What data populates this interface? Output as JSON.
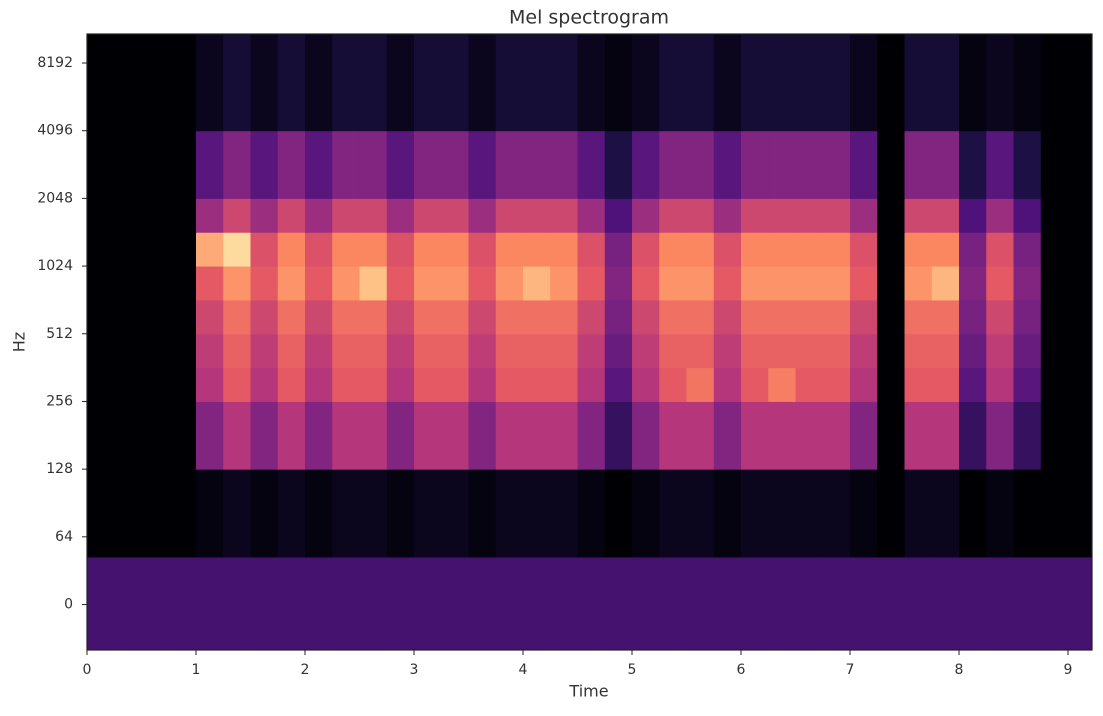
{
  "chart_data": {
    "type": "heatmap",
    "title": "Mel spectrogram",
    "xlabel": "Time",
    "ylabel": "Hz",
    "colormap": "magma",
    "zlim": [
      -80,
      0
    ],
    "yscale": "symlog",
    "linthresh": 64,
    "logbase": 2,
    "xlim": [
      0,
      9.22
    ],
    "xticks": [
      0,
      1,
      2,
      3,
      4,
      5,
      6,
      7,
      8,
      9
    ],
    "ylim": [
      -43,
      11025
    ],
    "yticks": [
      0,
      64,
      128,
      256,
      512,
      1024,
      2048,
      4096,
      8192
    ],
    "xbins": [
      0,
      0.25,
      0.5,
      0.75,
      1,
      1.25,
      1.5,
      1.75,
      2,
      2.25,
      2.5,
      2.75,
      3,
      3.25,
      3.5,
      3.75,
      4,
      4.25,
      4.5,
      4.75,
      5,
      5.25,
      5.5,
      5.75,
      6,
      6.25,
      6.5,
      6.75,
      7,
      7.25,
      7.5,
      7.75,
      8,
      8.25,
      8.5,
      8.75,
      9,
      9.22
    ],
    "ybins": [
      -43,
      45,
      128,
      256,
      362,
      512,
      724,
      1024,
      1448,
      2048,
      4096,
      11025
    ],
    "z": [
      [
        -62,
        -62,
        -62,
        -62,
        -62,
        -62,
        -62,
        -62,
        -62,
        -62,
        -62,
        -62,
        -62,
        -62,
        -62,
        -62,
        -62,
        -62,
        -62,
        -62,
        -62,
        -62,
        -62,
        -62,
        -62,
        -62,
        -62,
        -62,
        -62,
        -62,
        -62,
        -62,
        -62,
        -62,
        -62,
        -62,
        -62
      ],
      [
        -80,
        -80,
        -80,
        -80,
        -78,
        -76,
        -78,
        -76,
        -78,
        -76,
        -76,
        -78,
        -76,
        -76,
        -78,
        -76,
        -76,
        -76,
        -78,
        -80,
        -78,
        -76,
        -76,
        -78,
        -76,
        -76,
        -76,
        -76,
        -78,
        -80,
        -76,
        -76,
        -80,
        -78,
        -80,
        -80,
        -80
      ],
      [
        -80,
        -80,
        -80,
        -80,
        -50,
        -40,
        -50,
        -40,
        -50,
        -40,
        -40,
        -50,
        -40,
        -40,
        -50,
        -40,
        -40,
        -40,
        -50,
        -65,
        -50,
        -40,
        -40,
        -50,
        -40,
        -40,
        -40,
        -40,
        -50,
        -80,
        -40,
        -40,
        -65,
        -50,
        -65,
        -80,
        -80
      ],
      [
        -80,
        -80,
        -80,
        -80,
        -40,
        -30,
        -40,
        -30,
        -40,
        -30,
        -30,
        -40,
        -30,
        -30,
        -40,
        -30,
        -30,
        -30,
        -40,
        -58,
        -40,
        -30,
        -24,
        -40,
        -30,
        -22,
        -30,
        -30,
        -40,
        -80,
        -30,
        -30,
        -58,
        -40,
        -58,
        -80,
        -80
      ],
      [
        -80,
        -80,
        -80,
        -80,
        -38,
        -28,
        -38,
        -28,
        -38,
        -28,
        -28,
        -38,
        -28,
        -28,
        -38,
        -28,
        -28,
        -28,
        -38,
        -55,
        -38,
        -28,
        -28,
        -38,
        -28,
        -28,
        -28,
        -28,
        -38,
        -80,
        -28,
        -28,
        -55,
        -38,
        -55,
        -80,
        -80
      ],
      [
        -80,
        -80,
        -80,
        -80,
        -35,
        -25,
        -35,
        -25,
        -35,
        -25,
        -25,
        -35,
        -25,
        -25,
        -35,
        -25,
        -25,
        -25,
        -35,
        -52,
        -35,
        -25,
        -25,
        -35,
        -25,
        -25,
        -25,
        -25,
        -35,
        -80,
        -25,
        -25,
        -52,
        -35,
        -52,
        -80,
        -80
      ],
      [
        -80,
        -80,
        -80,
        -80,
        -30,
        -18,
        -30,
        -18,
        -30,
        -18,
        -10,
        -30,
        -18,
        -18,
        -30,
        -18,
        -12,
        -18,
        -30,
        -50,
        -30,
        -18,
        -18,
        -30,
        -18,
        -18,
        -18,
        -18,
        -30,
        -80,
        -18,
        -12,
        -50,
        -30,
        -50,
        -80,
        -80
      ],
      [
        -80,
        -80,
        -80,
        -80,
        -14,
        -6,
        -32,
        -20,
        -32,
        -20,
        -20,
        -32,
        -20,
        -20,
        -32,
        -20,
        -20,
        -20,
        -32,
        -52,
        -32,
        -20,
        -20,
        -32,
        -20,
        -20,
        -20,
        -20,
        -32,
        -80,
        -20,
        -20,
        -52,
        -32,
        -52,
        -80,
        -80
      ],
      [
        -80,
        -80,
        -80,
        -80,
        -45,
        -35,
        -45,
        -35,
        -45,
        -35,
        -35,
        -45,
        -35,
        -35,
        -45,
        -35,
        -35,
        -35,
        -45,
        -60,
        -45,
        -35,
        -35,
        -45,
        -35,
        -35,
        -35,
        -35,
        -45,
        -80,
        -35,
        -35,
        -60,
        -45,
        -60,
        -80,
        -80
      ],
      [
        -80,
        -80,
        -80,
        -80,
        -58,
        -50,
        -58,
        -50,
        -58,
        -50,
        -50,
        -58,
        -50,
        -50,
        -58,
        -50,
        -50,
        -50,
        -58,
        -70,
        -58,
        -50,
        -50,
        -58,
        -50,
        -50,
        -50,
        -50,
        -58,
        -80,
        -50,
        -50,
        -70,
        -58,
        -70,
        -80,
        -80
      ],
      [
        -80,
        -80,
        -80,
        -80,
        -76,
        -72,
        -76,
        -72,
        -76,
        -72,
        -72,
        -76,
        -72,
        -72,
        -76,
        -72,
        -72,
        -72,
        -76,
        -78,
        -76,
        -72,
        -72,
        -76,
        -72,
        -72,
        -72,
        -72,
        -76,
        -80,
        -72,
        -72,
        -78,
        -76,
        -78,
        -80,
        -80
      ]
    ]
  }
}
